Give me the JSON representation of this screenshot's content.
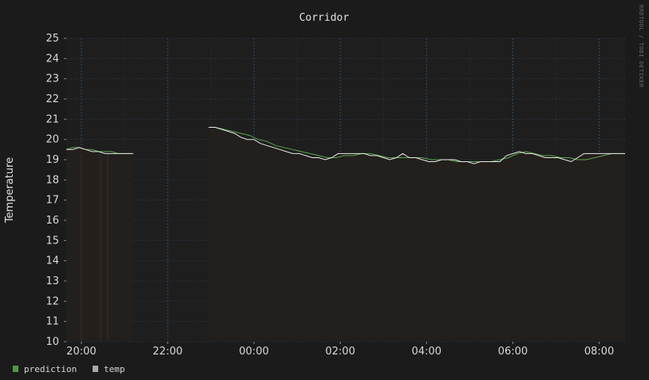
{
  "chart_data": {
    "type": "line",
    "title": "Corridor",
    "ylabel": "Temperature",
    "xlabel": "",
    "ylim": [
      10,
      25
    ],
    "y_ticks": [
      10,
      11,
      12,
      13,
      14,
      15,
      16,
      17,
      18,
      19,
      20,
      21,
      22,
      23,
      24,
      25
    ],
    "xlim_hours": [
      19.65,
      32.6
    ],
    "x_ticks": [
      {
        "label": "20:00",
        "hour": 20
      },
      {
        "label": "22:00",
        "hour": 22
      },
      {
        "label": "00:00",
        "hour": 24
      },
      {
        "label": "02:00",
        "hour": 26
      },
      {
        "label": "04:00",
        "hour": 28
      },
      {
        "label": "06:00",
        "hour": 30
      },
      {
        "label": "08:00",
        "hour": 32
      }
    ],
    "grid": true,
    "legend_position": "bottom-left",
    "watermark": "RRDTOOL / TOBI OETIKER",
    "series": [
      {
        "name": "temp",
        "color": "#e8e8e8",
        "x": [
          19.65,
          19.8,
          19.95,
          20.1,
          20.25,
          20.4,
          20.55,
          20.7,
          20.85,
          21.0,
          21.1,
          21.2,
          null,
          22.95,
          23.1,
          23.25,
          23.4,
          23.55,
          23.7,
          23.85,
          24.0,
          24.15,
          24.3,
          24.45,
          24.6,
          24.75,
          24.9,
          25.05,
          25.2,
          25.35,
          25.5,
          25.65,
          25.8,
          25.95,
          26.1,
          26.25,
          26.4,
          26.55,
          26.7,
          26.85,
          27.0,
          27.15,
          27.3,
          27.45,
          27.6,
          27.75,
          27.9,
          28.05,
          28.2,
          28.35,
          28.5,
          28.65,
          28.8,
          28.95,
          29.1,
          29.25,
          29.4,
          29.55,
          29.7,
          29.85,
          30.0,
          30.15,
          30.3,
          30.45,
          30.6,
          30.75,
          30.9,
          31.05,
          31.2,
          31.35,
          31.5,
          31.65,
          31.8,
          31.95,
          32.1,
          32.25,
          32.4,
          32.6
        ],
        "values": [
          19.5,
          19.5,
          19.6,
          19.5,
          19.4,
          19.4,
          19.3,
          19.3,
          19.3,
          19.3,
          19.3,
          19.3,
          null,
          20.6,
          20.6,
          20.5,
          20.4,
          20.3,
          20.1,
          20.0,
          20.0,
          19.8,
          19.7,
          19.6,
          19.5,
          19.4,
          19.3,
          19.3,
          19.2,
          19.1,
          19.1,
          19.0,
          19.1,
          19.3,
          19.3,
          19.3,
          19.3,
          19.3,
          19.2,
          19.2,
          19.1,
          19.0,
          19.1,
          19.3,
          19.1,
          19.1,
          19.0,
          18.9,
          18.9,
          19.0,
          19.0,
          19.0,
          18.9,
          18.9,
          18.8,
          18.9,
          18.9,
          18.9,
          18.9,
          19.2,
          19.3,
          19.4,
          19.3,
          19.3,
          19.2,
          19.1,
          19.1,
          19.1,
          19.0,
          18.9,
          19.1,
          19.3,
          19.3,
          19.3,
          19.3,
          19.3,
          19.3,
          19.3
        ]
      },
      {
        "name": "prediction",
        "color": "#5aa84a",
        "x": [
          19.65,
          19.8,
          19.95,
          20.1,
          20.25,
          20.4,
          20.55,
          20.7,
          20.85,
          21.0,
          21.1,
          21.2,
          null,
          23.1,
          23.3,
          23.5,
          23.7,
          23.9,
          24.1,
          24.3,
          24.5,
          24.7,
          24.9,
          25.1,
          25.3,
          25.5,
          25.7,
          25.9,
          26.1,
          26.3,
          26.5,
          26.7,
          26.9,
          27.1,
          27.3,
          27.5,
          27.7,
          27.9,
          28.1,
          28.3,
          28.5,
          28.7,
          28.9,
          29.1,
          29.3,
          29.5,
          29.7,
          29.9,
          30.1,
          30.3,
          30.5,
          30.7,
          30.9,
          31.1,
          31.3,
          31.5,
          31.7,
          31.9,
          32.1,
          32.3,
          32.6
        ],
        "values": [
          19.5,
          19.6,
          19.6,
          19.5,
          19.5,
          19.4,
          19.4,
          19.4,
          19.3,
          19.3,
          19.3,
          19.3,
          null,
          20.6,
          20.5,
          20.4,
          20.3,
          20.2,
          20.0,
          19.9,
          19.7,
          19.6,
          19.5,
          19.4,
          19.3,
          19.2,
          19.1,
          19.1,
          19.2,
          19.2,
          19.3,
          19.3,
          19.2,
          19.1,
          19.1,
          19.1,
          19.1,
          19.1,
          19.0,
          19.0,
          19.0,
          18.9,
          18.9,
          18.9,
          18.9,
          18.9,
          19.0,
          19.1,
          19.3,
          19.4,
          19.3,
          19.2,
          19.2,
          19.1,
          19.1,
          19.0,
          19.0,
          19.1,
          19.2,
          19.3,
          19.3
        ]
      }
    ]
  },
  "legend": [
    {
      "name": "prediction",
      "color": "#4f9a44"
    },
    {
      "name": "temp",
      "color": "#a8a8a8"
    }
  ]
}
